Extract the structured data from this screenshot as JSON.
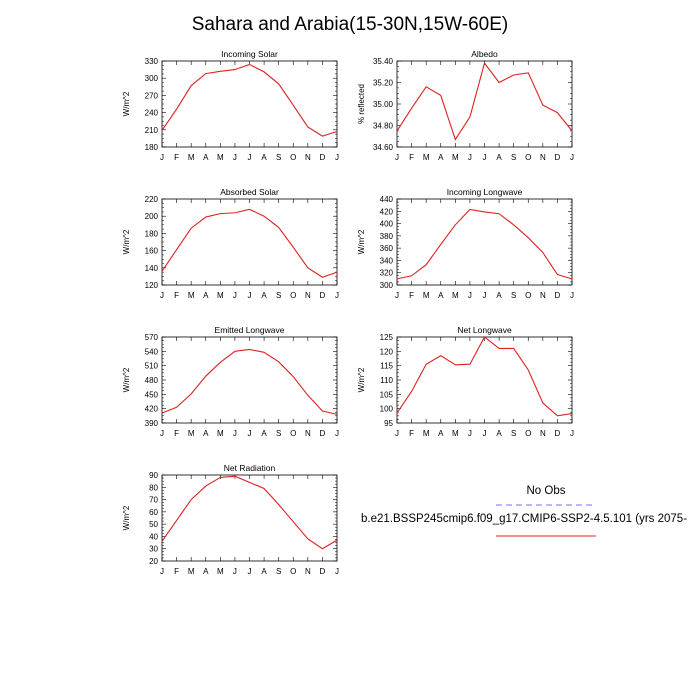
{
  "title": "Sahara and Arabia(15-30N,15W-60E)",
  "legend": {
    "obs_label": "No Obs",
    "obs_color": "#7070ff",
    "model_label": "b.e21.BSSP245cmip6.f09_g17.CMIP6-SSP2-4.5.101 (yrs 2075-",
    "model_color": "#e02020"
  },
  "chart_data": [
    {
      "type": "line",
      "title": "Incoming Solar",
      "ylabel": "W/m^2",
      "categories": [
        "J",
        "F",
        "M",
        "A",
        "M",
        "J",
        "J",
        "A",
        "S",
        "O",
        "N",
        "D",
        "J"
      ],
      "ylim": [
        180,
        330
      ],
      "yticks": [
        180,
        210,
        240,
        270,
        300,
        330
      ],
      "ytick_labels": [
        "180",
        "210",
        "240",
        "270",
        "300",
        "330"
      ],
      "series": [
        {
          "values": [
            209,
            246,
            287,
            308,
            312,
            315,
            324,
            311,
            290,
            253,
            215,
            199,
            207
          ],
          "color": "#e02020"
        }
      ]
    },
    {
      "type": "line",
      "title": "Albedo",
      "ylabel": "% reflected",
      "categories": [
        "J",
        "F",
        "M",
        "A",
        "M",
        "J",
        "J",
        "A",
        "S",
        "O",
        "N",
        "D",
        "J"
      ],
      "ylim": [
        34.6,
        35.4
      ],
      "yticks": [
        34.6,
        34.8,
        35.0,
        35.2,
        35.4
      ],
      "ytick_labels": [
        "34.60",
        "34.80",
        "35.00",
        "35.20",
        "35.40"
      ],
      "series": [
        {
          "values": [
            34.75,
            34.96,
            35.16,
            35.08,
            34.67,
            34.88,
            35.38,
            35.2,
            35.27,
            35.29,
            34.99,
            34.92,
            34.75
          ],
          "color": "#e02020"
        }
      ]
    },
    {
      "type": "line",
      "title": "Absorbed Solar",
      "ylabel": "W/m^2",
      "categories": [
        "J",
        "F",
        "M",
        "A",
        "M",
        "J",
        "J",
        "A",
        "S",
        "O",
        "N",
        "D",
        "J"
      ],
      "ylim": [
        120,
        220
      ],
      "yticks": [
        120,
        140,
        160,
        180,
        200,
        220
      ],
      "ytick_labels": [
        "120",
        "140",
        "160",
        "180",
        "200",
        "220"
      ],
      "series": [
        {
          "values": [
            136,
            161,
            186,
            199,
            203,
            204,
            208,
            200,
            187,
            164,
            140,
            129,
            135
          ],
          "color": "#e02020"
        }
      ]
    },
    {
      "type": "line",
      "title": "Incoming Longwave",
      "ylabel": "W/m^2",
      "categories": [
        "J",
        "F",
        "M",
        "A",
        "M",
        "J",
        "J",
        "A",
        "S",
        "O",
        "N",
        "D",
        "J"
      ],
      "ylim": [
        300,
        440
      ],
      "yticks": [
        300,
        320,
        340,
        360,
        380,
        400,
        420,
        440
      ],
      "ytick_labels": [
        "300",
        "320",
        "340",
        "360",
        "380",
        "400",
        "420",
        "440"
      ],
      "series": [
        {
          "values": [
            310,
            315,
            333,
            366,
            398,
            423,
            419,
            416,
            398,
            377,
            353,
            317,
            310
          ],
          "color": "#e02020"
        }
      ]
    },
    {
      "type": "line",
      "title": "Emitted Longwave",
      "ylabel": "W/m^2",
      "categories": [
        "J",
        "F",
        "M",
        "A",
        "M",
        "J",
        "J",
        "A",
        "S",
        "O",
        "N",
        "D",
        "J"
      ],
      "ylim": [
        390,
        570
      ],
      "yticks": [
        390,
        420,
        450,
        480,
        510,
        540,
        570
      ],
      "ytick_labels": [
        "390",
        "420",
        "450",
        "480",
        "510",
        "540",
        "570"
      ],
      "series": [
        {
          "values": [
            411,
            423,
            451,
            488,
            517,
            540,
            544,
            538,
            518,
            487,
            448,
            415,
            408
          ],
          "color": "#e02020"
        }
      ]
    },
    {
      "type": "line",
      "title": "Net Longwave",
      "ylabel": "W/m^2",
      "categories": [
        "J",
        "F",
        "M",
        "A",
        "M",
        "J",
        "J",
        "A",
        "S",
        "O",
        "N",
        "D",
        "J"
      ],
      "ylim": [
        95,
        125
      ],
      "yticks": [
        95,
        100,
        105,
        110,
        115,
        120,
        125
      ],
      "ytick_labels": [
        "95",
        "100",
        "105",
        "110",
        "115",
        "120",
        "125"
      ],
      "series": [
        {
          "values": [
            98.5,
            106,
            115.5,
            118.5,
            115.3,
            115.5,
            125,
            121,
            121,
            113.5,
            102,
            97.5,
            98.3
          ],
          "color": "#e02020"
        }
      ]
    },
    {
      "type": "line",
      "title": "Net Radiation",
      "ylabel": "W/m^2",
      "categories": [
        "J",
        "F",
        "M",
        "A",
        "M",
        "J",
        "J",
        "A",
        "S",
        "O",
        "N",
        "D",
        "J"
      ],
      "ylim": [
        20,
        90
      ],
      "yticks": [
        20,
        30,
        40,
        50,
        60,
        70,
        80,
        90
      ],
      "ytick_labels": [
        "20",
        "30",
        "40",
        "50",
        "60",
        "70",
        "80",
        "90"
      ],
      "series": [
        {
          "values": [
            36,
            53,
            70,
            81,
            88,
            89,
            84,
            79,
            66,
            52,
            38,
            30,
            37
          ],
          "color": "#e02020"
        }
      ]
    }
  ]
}
